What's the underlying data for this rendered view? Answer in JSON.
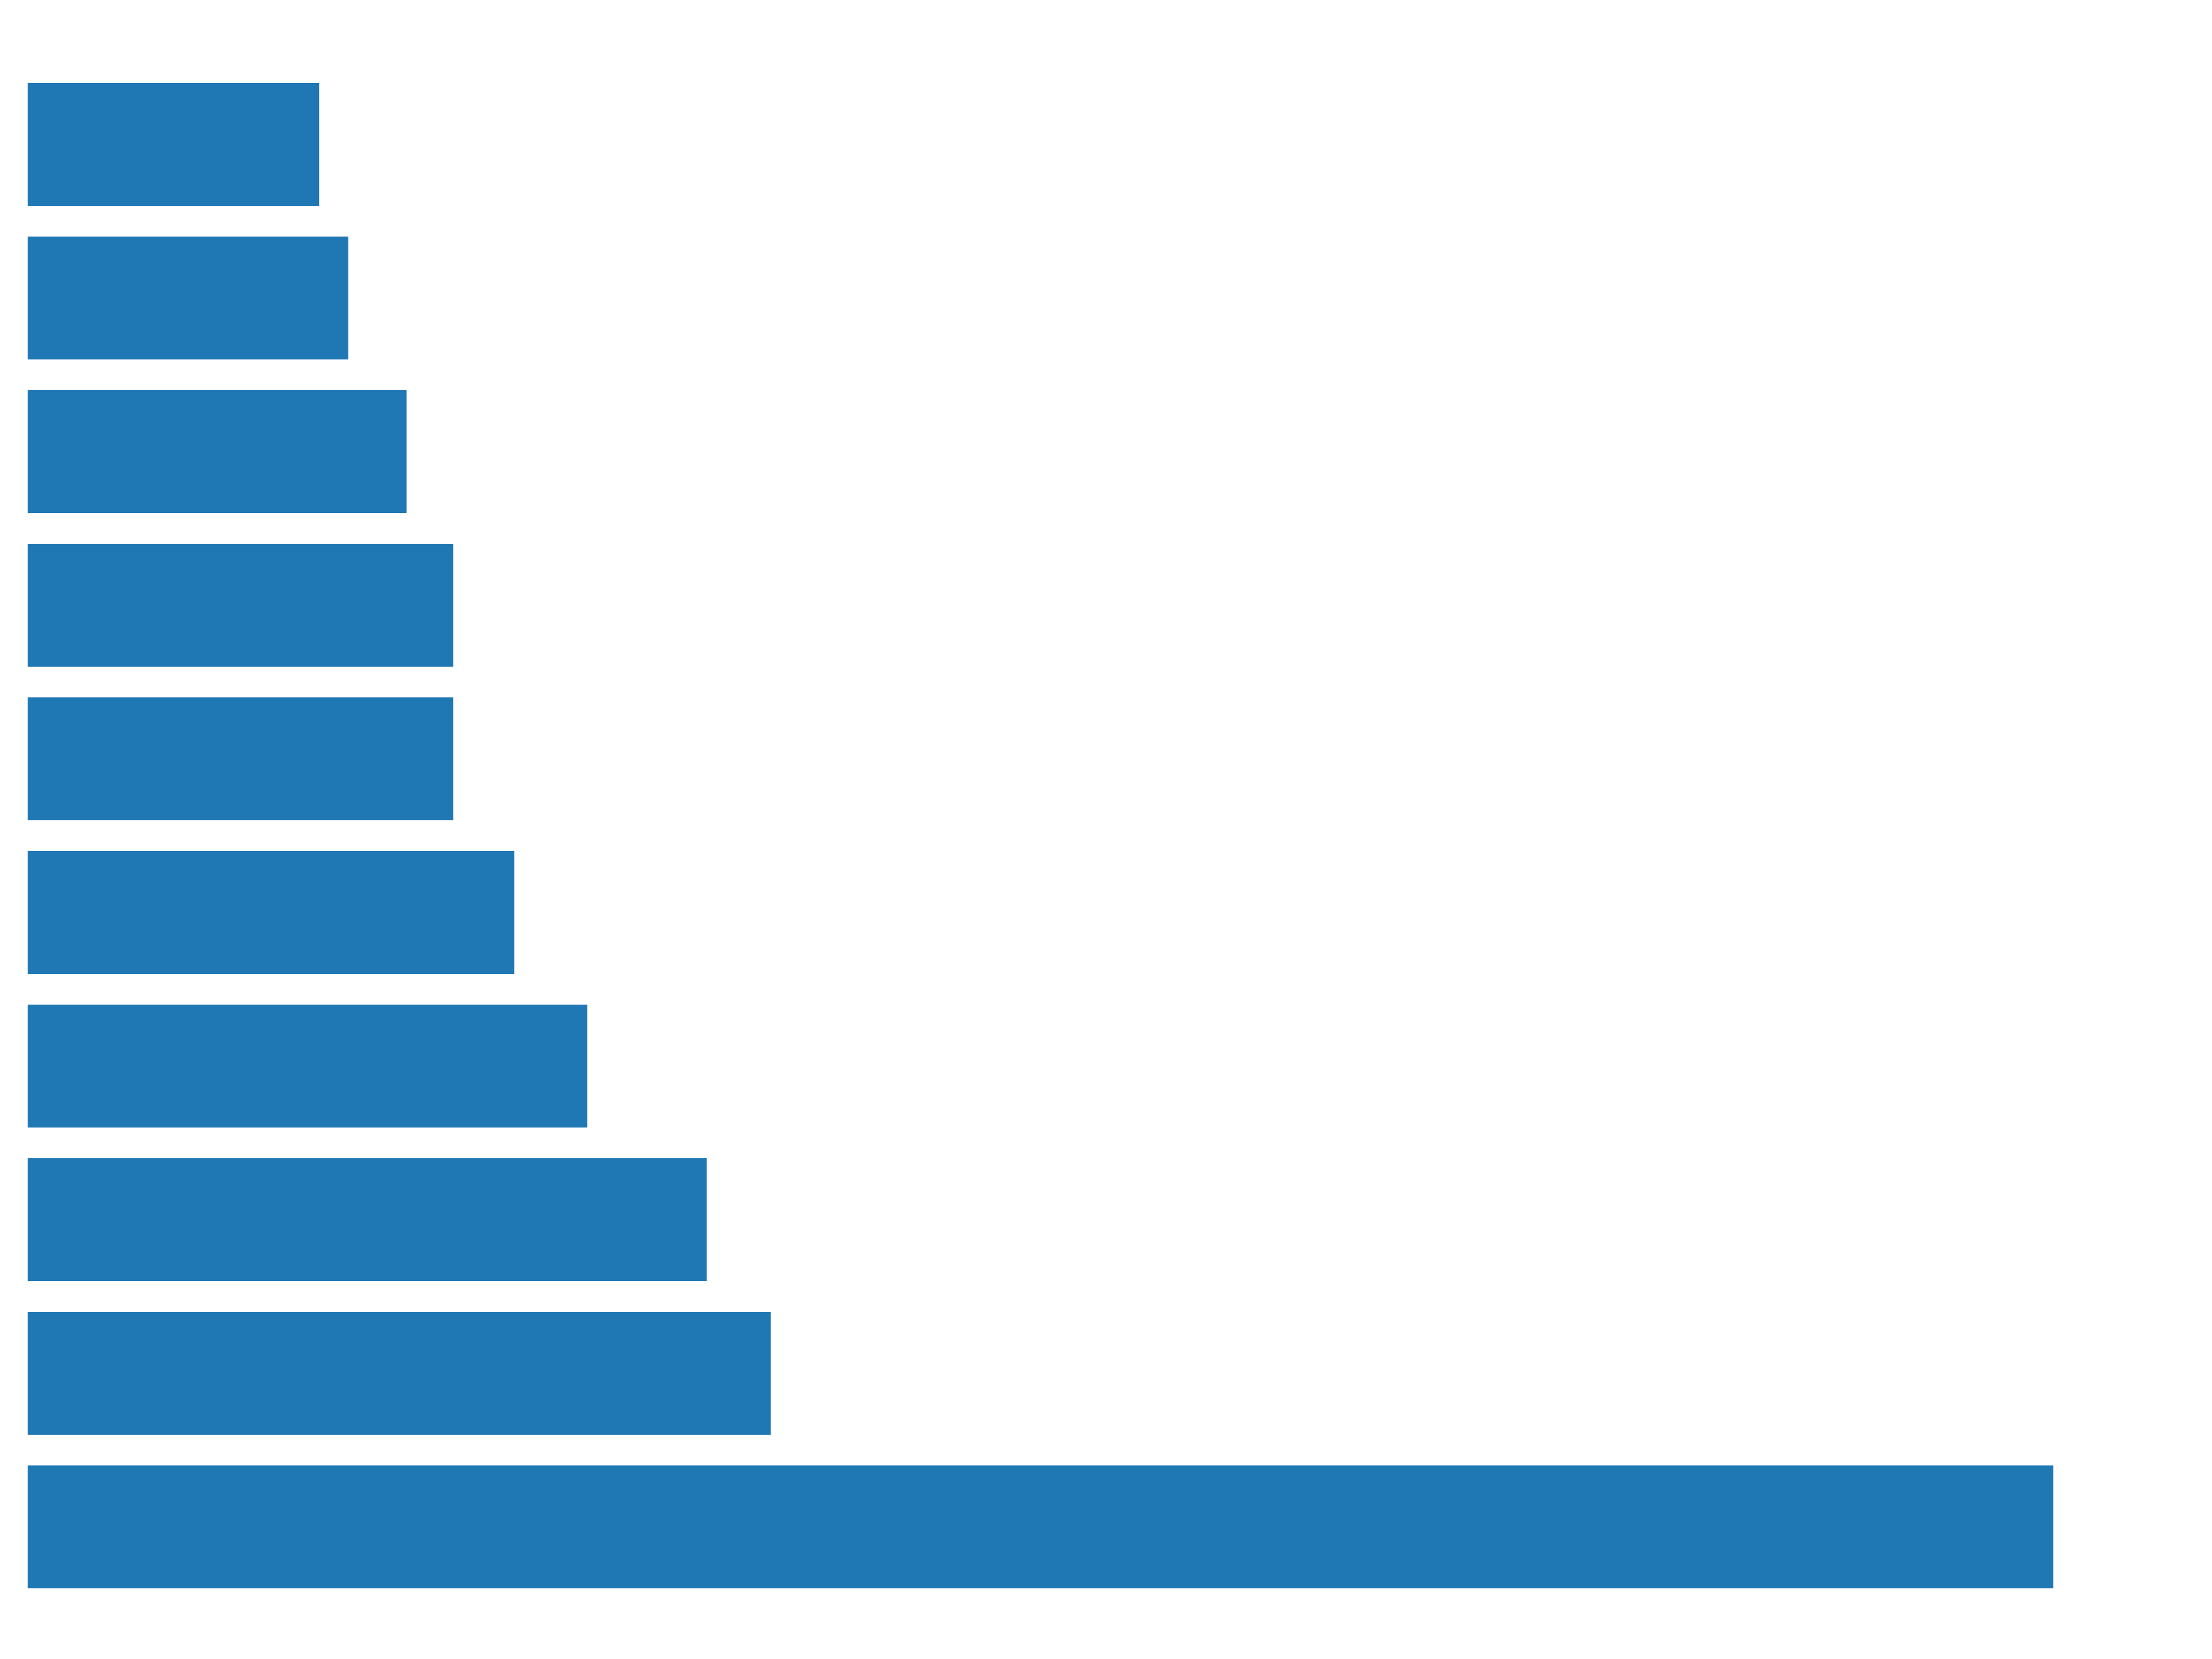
{
  "chart_data": {
    "type": "bar",
    "orientation": "horizontal",
    "values": [
      100,
      110,
      130,
      146,
      146,
      167,
      192,
      233,
      255,
      695
    ],
    "xlim": [
      0,
      740
    ],
    "grid": false,
    "axes_visible": false,
    "bar_color": "#1f77b4",
    "background": "#ffffff"
  }
}
